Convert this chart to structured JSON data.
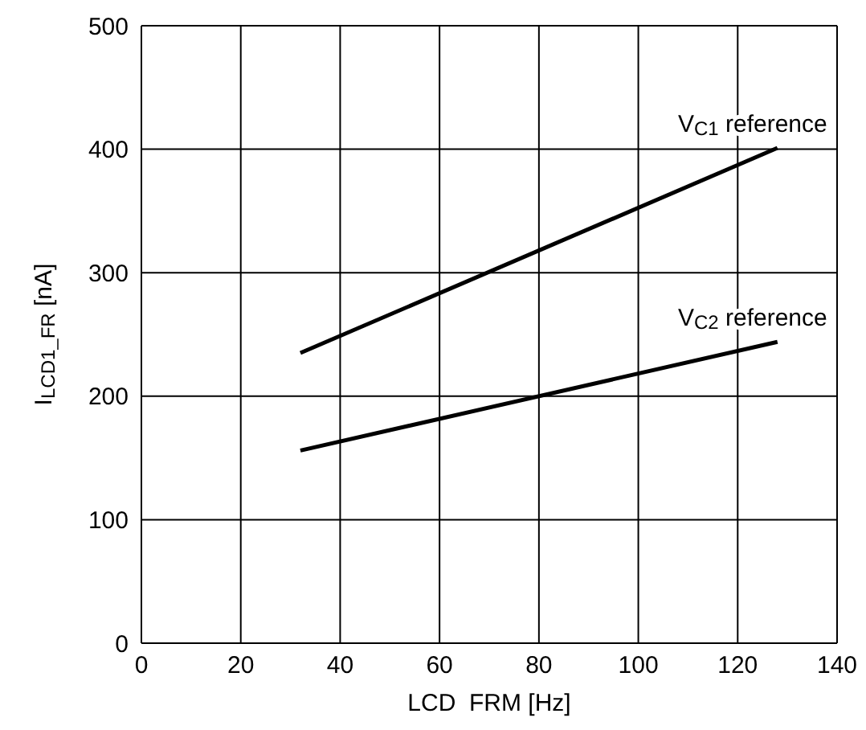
{
  "chart_data": {
    "type": "line",
    "xlabel": "LCD  FRM [Hz]",
    "ylabel": "I$_{LCD1_FR}$ [nA]",
    "xlim": [
      0,
      140
    ],
    "xticks": [
      0,
      20,
      40,
      60,
      80,
      100,
      120,
      140
    ],
    "ylim": [
      0,
      500
    ],
    "yticks": [
      0,
      100,
      200,
      300,
      400,
      500
    ],
    "grid": true,
    "marker": "none",
    "line_style": "solid",
    "legend": false,
    "x": [
      32,
      128
    ],
    "series": [
      {
        "color": "#000000",
        "values": [
          235,
          401
        ]
      },
      {
        "color": "#000000",
        "values": [
          156,
          244
        ]
      }
    ],
    "annotations": [
      {
        "text": "V$_{C1}$ reference",
        "x": 128,
        "y": 401
      },
      {
        "text": "V$_{C2}$ reference",
        "x": 128,
        "y": 244
      }
    ]
  }
}
